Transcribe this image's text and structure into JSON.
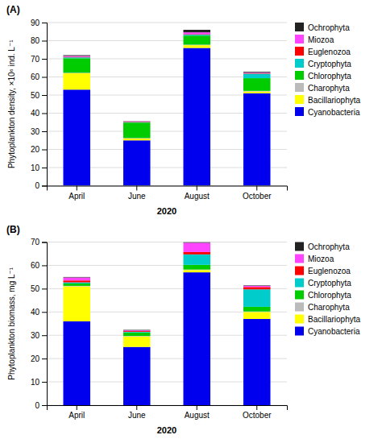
{
  "chart_data": [
    {
      "type": "bar",
      "stacked": true,
      "title": "(A)",
      "xlabel": "2020",
      "ylabel": "Phytoplankton density, ×10⁶ ind. L⁻¹",
      "categories": [
        "April",
        "June",
        "August",
        "October"
      ],
      "ylim": [
        0,
        90
      ],
      "yticks": [
        0,
        10,
        20,
        30,
        40,
        50,
        60,
        70,
        80,
        90
      ],
      "grid": true,
      "legend": "right",
      "series": [
        {
          "name": "Cyanobacteria",
          "color": "#0000EE",
          "values": [
            53.0,
            25.0,
            76.0,
            51.0
          ]
        },
        {
          "name": "Bacillariophyta",
          "color": "#FFFF00",
          "values": [
            9.0,
            1.0,
            1.5,
            1.0
          ]
        },
        {
          "name": "Charophyta",
          "color": "#BBBBBB",
          "values": [
            0.3,
            0.3,
            0.3,
            0.3
          ]
        },
        {
          "name": "Chlorophyta",
          "color": "#00CC00",
          "values": [
            8.0,
            8.5,
            5.0,
            7.0
          ]
        },
        {
          "name": "Cryptophyta",
          "color": "#00CCCC",
          "values": [
            0.5,
            0.3,
            0.5,
            2.5
          ]
        },
        {
          "name": "Euglenozoa",
          "color": "#FF0000",
          "values": [
            0.3,
            0.2,
            0.3,
            0.3
          ]
        },
        {
          "name": "Miozoa",
          "color": "#FF44FF",
          "values": [
            0.5,
            0.2,
            1.0,
            0.3
          ]
        },
        {
          "name": "Ochrophyta",
          "color": "#222222",
          "values": [
            0.4,
            0.1,
            1.4,
            0.4
          ]
        }
      ]
    },
    {
      "type": "bar",
      "stacked": true,
      "title": "(B)",
      "xlabel": "2020",
      "ylabel": "Phytoplankton biomass, mg L⁻¹",
      "categories": [
        "April",
        "June",
        "August",
        "October"
      ],
      "ylim": [
        0,
        70
      ],
      "yticks": [
        0,
        10,
        20,
        30,
        40,
        50,
        60,
        70
      ],
      "grid": true,
      "legend": "right",
      "series": [
        {
          "name": "Cyanobacteria",
          "color": "#0000EE",
          "values": [
            36.0,
            25.0,
            57.0,
            37.0
          ]
        },
        {
          "name": "Bacillariophyta",
          "color": "#FFFF00",
          "values": [
            15.0,
            4.5,
            1.0,
            3.0
          ]
        },
        {
          "name": "Charophyta",
          "color": "#BBBBBB",
          "values": [
            0.2,
            0.2,
            0.2,
            0.2
          ]
        },
        {
          "name": "Chlorophyta",
          "color": "#00CC00",
          "values": [
            1.0,
            1.5,
            2.0,
            2.0
          ]
        },
        {
          "name": "Cryptophyta",
          "color": "#00CCCC",
          "values": [
            0.5,
            0.3,
            4.5,
            7.5
          ]
        },
        {
          "name": "Euglenozoa",
          "color": "#FF0000",
          "values": [
            0.8,
            0.3,
            1.0,
            1.0
          ]
        },
        {
          "name": "Miozoa",
          "color": "#FF44FF",
          "values": [
            1.3,
            0.3,
            4.0,
            0.5
          ]
        },
        {
          "name": "Ochrophyta",
          "color": "#222222",
          "values": [
            0.2,
            0.2,
            0.3,
            0.2
          ]
        }
      ]
    }
  ]
}
